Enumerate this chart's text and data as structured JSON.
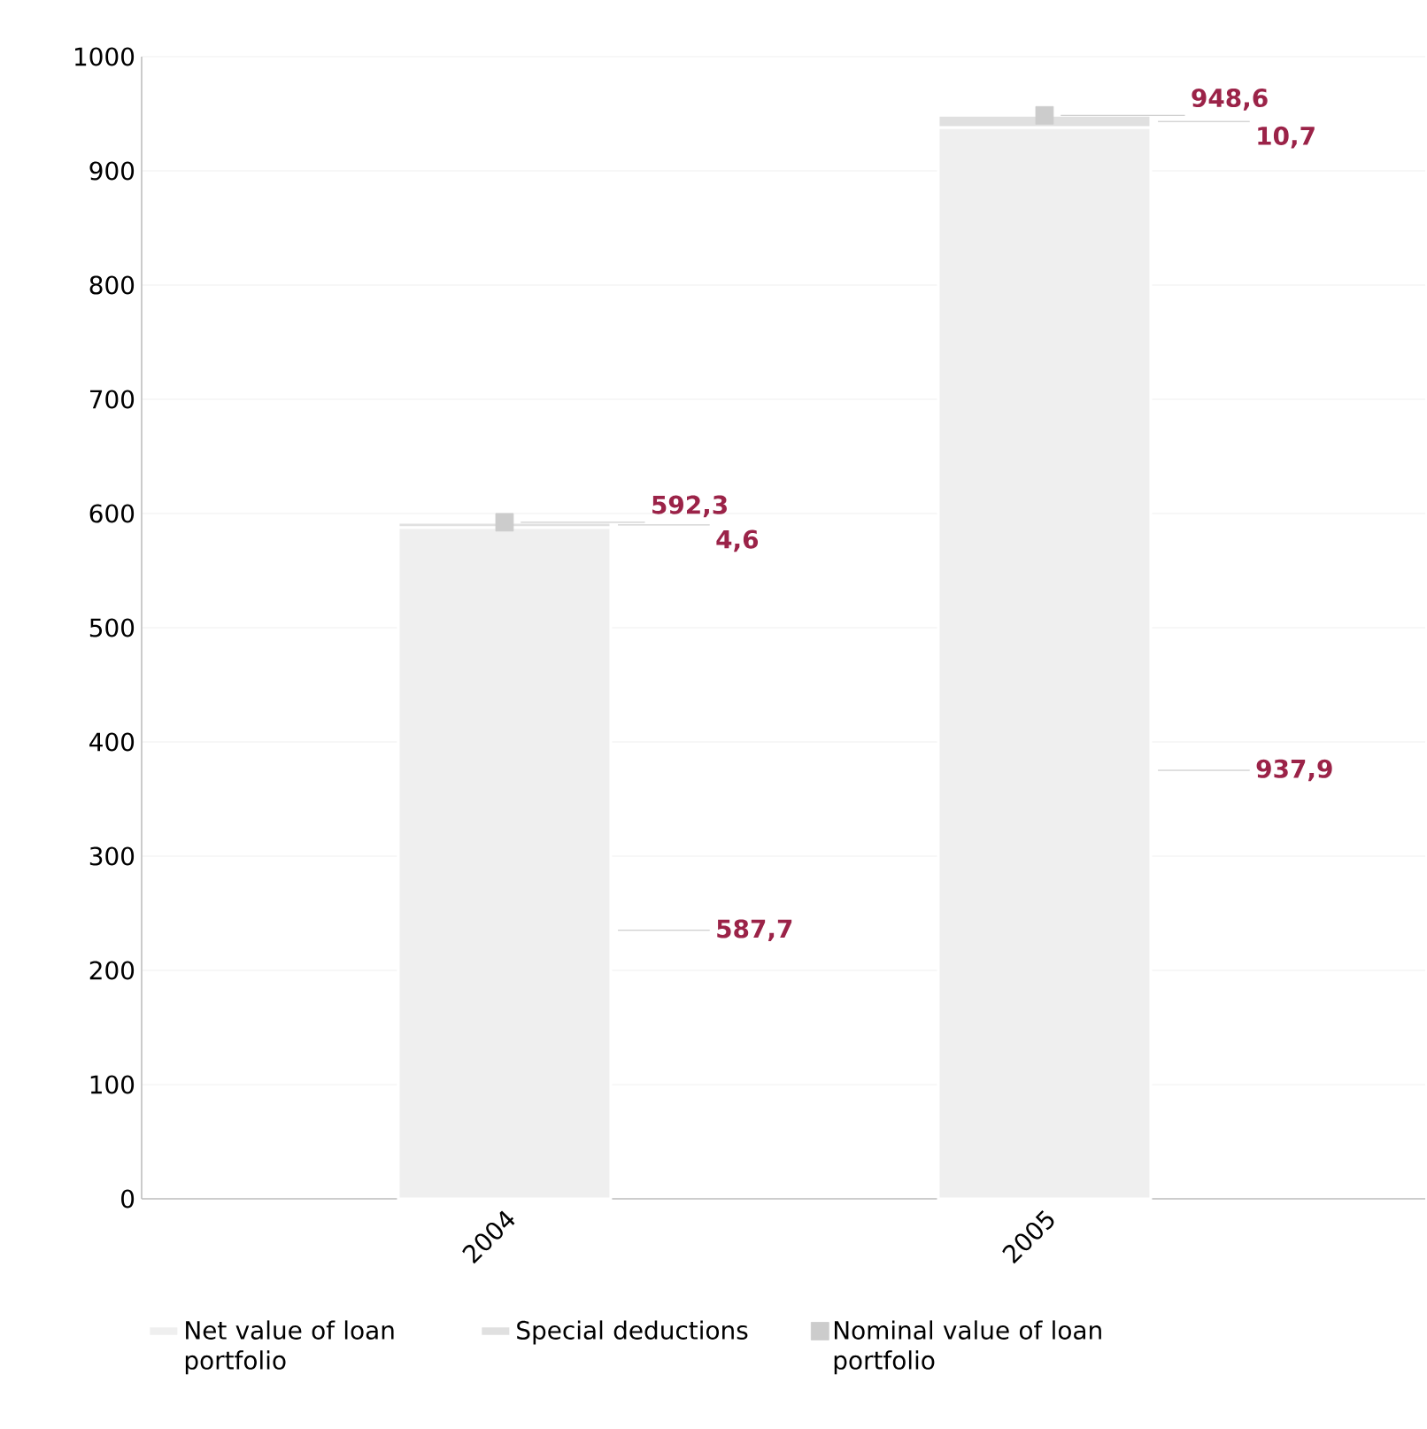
{
  "chart_data": {
    "type": "bar",
    "stacked": true,
    "categories": [
      "2004",
      "2005"
    ],
    "series": [
      {
        "name": "Net value of loan portfolio",
        "color": "#efefef",
        "values": [
          587.7,
          937.9
        ],
        "value_labels": [
          "587,7",
          "937,9"
        ]
      },
      {
        "name": "Special deductions",
        "color": "#e0e0e0",
        "values": [
          4.6,
          10.7
        ],
        "value_labels": [
          "4,6",
          "10,7"
        ]
      },
      {
        "name": "Nominal value of loan portfolio",
        "color": "#cccccc",
        "type": "scatter",
        "marker": "square",
        "values": [
          592.3,
          948.6
        ],
        "value_labels": [
          "592,3",
          "948,6"
        ]
      }
    ],
    "ylim": [
      0,
      1000
    ],
    "yticks": [
      0,
      100,
      200,
      300,
      400,
      500,
      600,
      700,
      800,
      900,
      1000
    ],
    "grid": "y",
    "legend": "bottom"
  }
}
